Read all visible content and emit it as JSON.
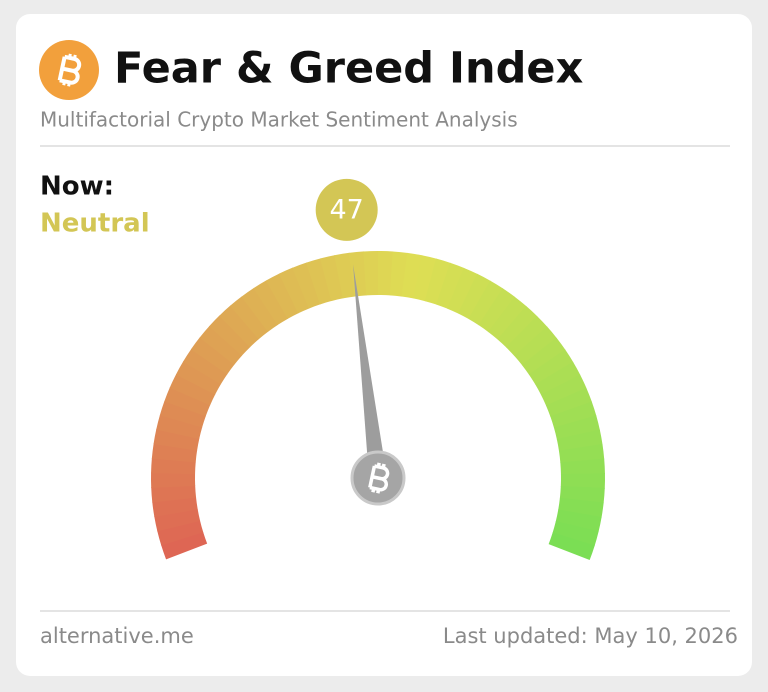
{
  "chart_data": {
    "type": "gauge",
    "title": "Fear & Greed Index",
    "subtitle": "Multifactorial Crypto Market Sentiment Analysis",
    "now_label": "Now:",
    "classification": "Neutral",
    "value": 47,
    "color": "#d3c655",
    "ylim": [
      0,
      100
    ],
    "source": "alternative.me",
    "updated": "Last updated: May 10, 2026"
  }
}
